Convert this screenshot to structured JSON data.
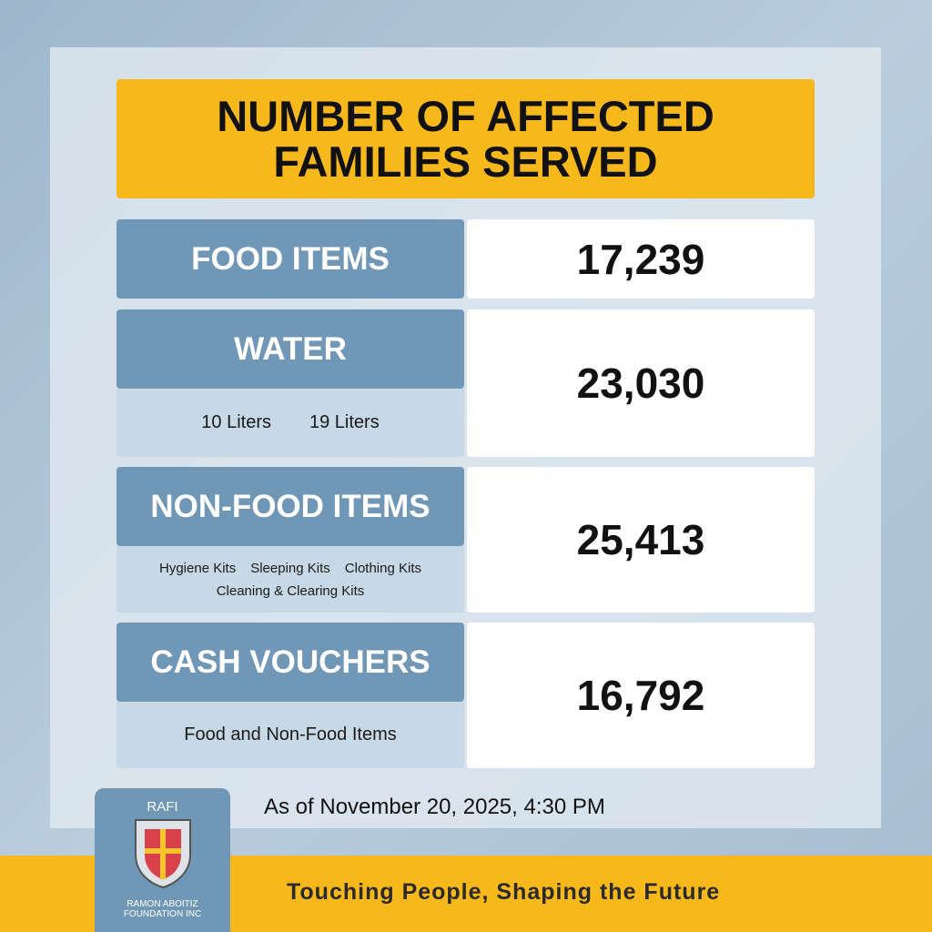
{
  "title": "NUMBER OF AFFECTED\nFAMILIES SERVED",
  "rows": [
    {
      "label": "FOOD ITEMS",
      "value": "17,239"
    },
    {
      "label": "WATER",
      "value": "23,030",
      "subs": [
        "10 Liters",
        "19 Liters"
      ]
    },
    {
      "label": "NON-FOOD ITEMS",
      "value": "25,413",
      "subs": [
        "Hygiene Kits",
        "Sleeping Kits",
        "Clothing Kits",
        "Cleaning & Clearing Kits"
      ]
    },
    {
      "label": "CASH VOUCHERS",
      "value": "16,792",
      "subs": [
        "Food and Non-Food Items"
      ]
    }
  ],
  "date": "As of November 20, 2025, 4:30 PM",
  "tagline": "Touching People, Shaping the Future",
  "logo": {
    "acronym": "RAFI",
    "name_line1": "RAMON ABOITIZ",
    "name_line2": "FOUNDATION INC"
  },
  "colors": {
    "accent": "#f7b81b",
    "label_bg": "#7097b6",
    "sub_bg": "#c7d8e6"
  }
}
